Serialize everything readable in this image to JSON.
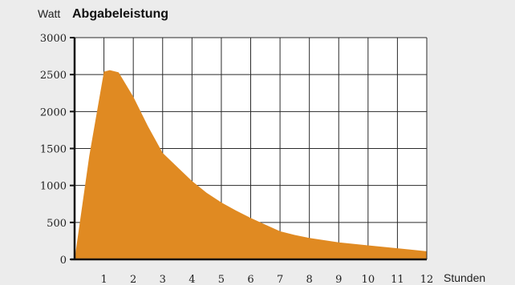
{
  "chart_data": {
    "type": "area",
    "title": "Abgabeleistung",
    "ylabel": "Watt",
    "xlabel": "Stunden",
    "ylim": [
      0,
      3000
    ],
    "xlim": [
      0,
      12
    ],
    "x_ticks": [
      1,
      2,
      3,
      4,
      5,
      6,
      7,
      8,
      9,
      10,
      11,
      12
    ],
    "y_ticks": [
      0,
      500,
      1000,
      1500,
      2000,
      2500,
      3000
    ],
    "grid": true,
    "fill_color": "#e08a22",
    "series": [
      {
        "x": [
          0,
          0.5,
          1,
          1.2,
          1.5,
          2,
          2.5,
          3,
          3.5,
          4,
          4.5,
          5,
          5.5,
          6,
          6.5,
          7,
          7.5,
          8,
          9,
          10,
          11,
          12
        ],
        "values": [
          0,
          1400,
          2540,
          2560,
          2530,
          2200,
          1800,
          1440,
          1250,
          1060,
          900,
          770,
          660,
          560,
          470,
          380,
          330,
          290,
          230,
          190,
          150,
          110
        ]
      }
    ]
  }
}
